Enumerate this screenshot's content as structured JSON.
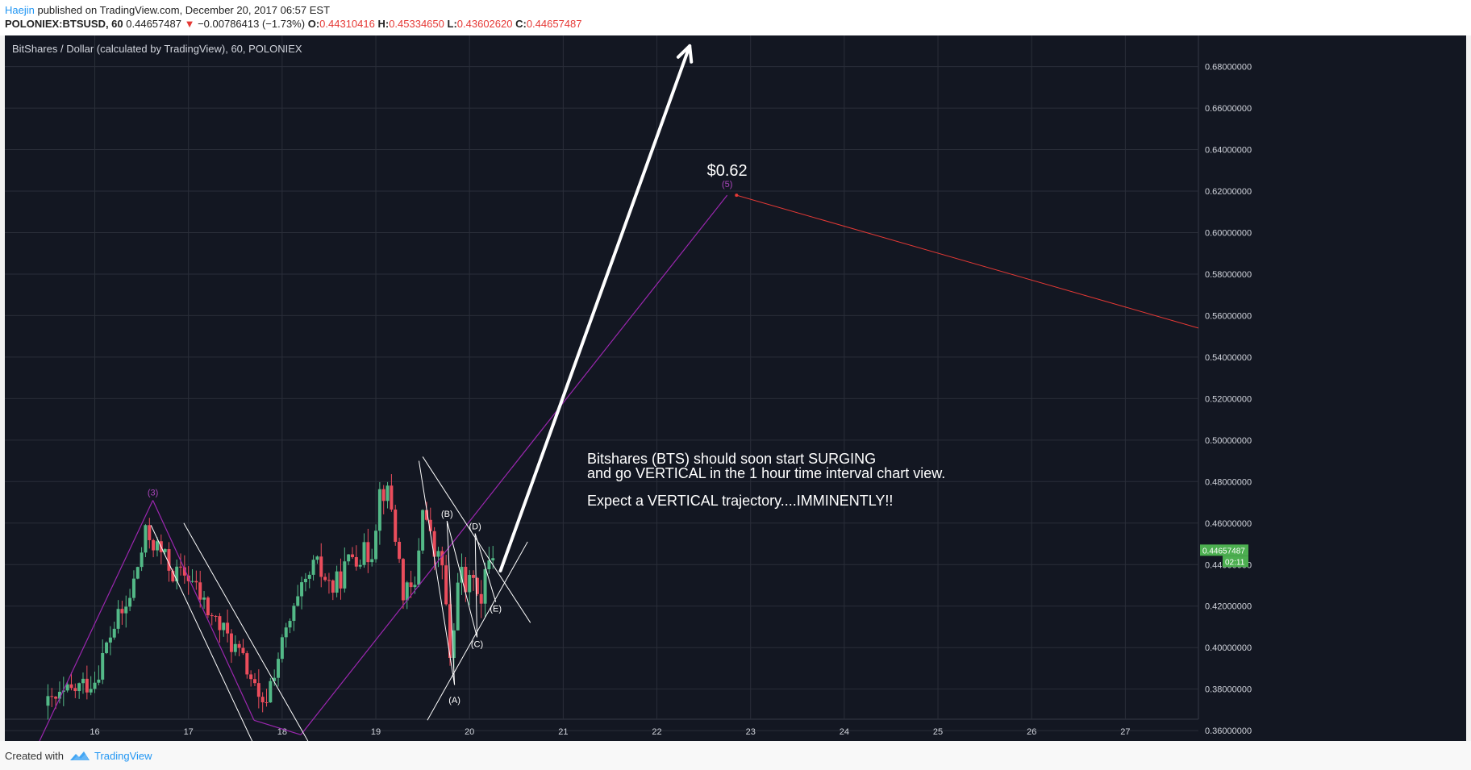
{
  "header": {
    "author": "Haejin",
    "published": " published on TradingView.com, December 20, 2017 06:57 EST",
    "symbol": "POLONIEX:BTSUSD, 60",
    "last": "0.44657487",
    "arrow": "▼",
    "change": "−0.00786413 (−1.73%)",
    "o_label": "O:",
    "o_value": "0.44310416",
    "h_label": "H:",
    "h_value": "0.45334650",
    "l_label": "L:",
    "l_value": "0.43602620",
    "c_label": "C:",
    "c_value": "0.44657487"
  },
  "chart_title": "BitShares / Dollar (calculated by TradingView), 60, POLONIEX",
  "footer": {
    "created_with": "Created with",
    "brand": "TradingView"
  },
  "colors": {
    "background": "#131722",
    "grid": "#2a2e39",
    "up": "#53b987",
    "down": "#eb4d5c",
    "wave": "#9c27b0",
    "projection": "#e53935",
    "price_tag": "#4caf50"
  },
  "chart_data": {
    "type": "candlestick",
    "title": "BitShares / Dollar (calculated by TradingView), 60, POLONIEX",
    "x_ticks": [
      "16",
      "17",
      "18",
      "19",
      "20",
      "21",
      "22",
      "23",
      "24",
      "25",
      "26",
      "27"
    ],
    "y_ticks": [
      "0.68000000",
      "0.66000000",
      "0.64000000",
      "0.62000000",
      "0.60000000",
      "0.58000000",
      "0.56000000",
      "0.54000000",
      "0.52000000",
      "0.50000000",
      "0.48000000",
      "0.46000000",
      "0.44000000",
      "0.42000000",
      "0.40000000",
      "0.38000000",
      "0.36000000"
    ],
    "ylim": [
      0.355,
      0.695
    ],
    "xlim": [
      15.04,
      27.78
    ],
    "grid": true,
    "price_tag": "0.44657487",
    "countdown": "02:11",
    "close_price": 0.44657487,
    "price_path": [
      [
        15.5,
        0.372
      ],
      [
        15.8,
        0.38
      ],
      [
        16.0,
        0.385
      ],
      [
        16.2,
        0.41
      ],
      [
        16.35,
        0.42
      ],
      [
        16.55,
        0.455
      ],
      [
        16.72,
        0.445
      ],
      [
        16.85,
        0.435
      ],
      [
        17.0,
        0.435
      ],
      [
        17.2,
        0.418
      ],
      [
        17.45,
        0.403
      ],
      [
        17.65,
        0.388
      ],
      [
        17.78,
        0.368
      ],
      [
        17.92,
        0.39
      ],
      [
        18.05,
        0.408
      ],
      [
        18.2,
        0.425
      ],
      [
        18.35,
        0.44
      ],
      [
        18.55,
        0.428
      ],
      [
        18.75,
        0.445
      ],
      [
        18.95,
        0.445
      ],
      [
        19.05,
        0.478
      ],
      [
        19.15,
        0.472
      ],
      [
        19.3,
        0.425
      ],
      [
        19.42,
        0.428
      ],
      [
        19.5,
        0.47
      ],
      [
        19.62,
        0.445
      ],
      [
        19.72,
        0.44
      ],
      [
        19.8,
        0.385
      ],
      [
        19.88,
        0.44
      ],
      [
        19.98,
        0.425
      ],
      [
        20.05,
        0.44
      ],
      [
        20.12,
        0.418
      ],
      [
        20.2,
        0.445
      ],
      [
        20.27,
        0.4466
      ]
    ],
    "annotations": {
      "wave_labels": [
        "(3)",
        "(5)"
      ],
      "abcde_labels": [
        "(A)",
        "(B)",
        "(C)",
        "(D)",
        "(E)"
      ],
      "target_label": "$0.62",
      "note_line1": "Bitshares (BTS) should soon start SURGING",
      "note_line2": "and go VERTICAL in the 1 hour time interval chart view.",
      "note_line3": "Expect a VERTICAL trajectory....IMMINENTLY!!"
    }
  }
}
